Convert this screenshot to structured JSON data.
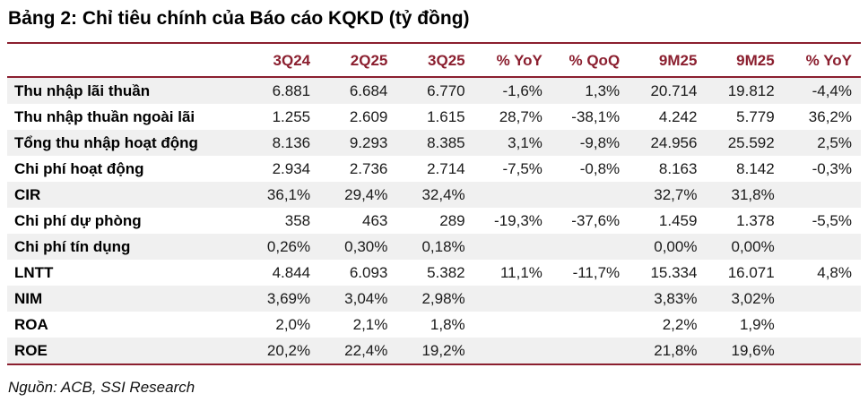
{
  "title": "Bảng 2: Chỉ tiêu chính của Báo cáo KQKD (tỷ đồng)",
  "source": "Nguồn: ACB, SSI Research",
  "colors": {
    "accent_maroon": "#8B1F2F",
    "row_stripe": "#F0F0F0",
    "text": "#1a1a1a"
  },
  "chart_data": {
    "type": "table",
    "title": "Bảng 2: Chỉ tiêu chính của Báo cáo KQKD (tỷ đồng)",
    "columns": [
      "",
      "3Q24",
      "2Q25",
      "3Q25",
      "% YoY",
      "% QoQ",
      "9M25",
      "9M25",
      "% YoY"
    ],
    "rows": [
      {
        "label": "Thu nhập lãi thuần",
        "values": [
          "6.881",
          "6.684",
          "6.770",
          "-1,6%",
          "1,3%",
          "20.714",
          "19.812",
          "-4,4%"
        ]
      },
      {
        "label": "Thu nhập thuần ngoài lãi",
        "values": [
          "1.255",
          "2.609",
          "1.615",
          "28,7%",
          "-38,1%",
          "4.242",
          "5.779",
          "36,2%"
        ]
      },
      {
        "label": "Tổng thu nhập hoạt động",
        "values": [
          "8.136",
          "9.293",
          "8.385",
          "3,1%",
          "-9,8%",
          "24.956",
          "25.592",
          "2,5%"
        ]
      },
      {
        "label": "Chi phí hoạt động",
        "values": [
          "2.934",
          "2.736",
          "2.714",
          "-7,5%",
          "-0,8%",
          "8.163",
          "8.142",
          "-0,3%"
        ]
      },
      {
        "label": "CIR",
        "values": [
          "36,1%",
          "29,4%",
          "32,4%",
          "",
          "",
          "32,7%",
          "31,8%",
          ""
        ]
      },
      {
        "label": "Chi phí dự phòng",
        "values": [
          "358",
          "463",
          "289",
          "-19,3%",
          "-37,6%",
          "1.459",
          "1.378",
          "-5,5%"
        ]
      },
      {
        "label": "Chi phí tín dụng",
        "values": [
          "0,26%",
          "0,30%",
          "0,18%",
          "",
          "",
          "0,00%",
          "0,00%",
          ""
        ]
      },
      {
        "label": "LNTT",
        "values": [
          "4.844",
          "6.093",
          "5.382",
          "11,1%",
          "-11,7%",
          "15.334",
          "16.071",
          "4,8%"
        ]
      },
      {
        "label": "NIM",
        "values": [
          "3,69%",
          "3,04%",
          "2,98%",
          "",
          "",
          "3,83%",
          "3,02%",
          ""
        ]
      },
      {
        "label": "ROA",
        "values": [
          "2,0%",
          "2,1%",
          "1,8%",
          "",
          "",
          "2,2%",
          "1,9%",
          ""
        ]
      },
      {
        "label": "ROE",
        "values": [
          "20,2%",
          "22,4%",
          "19,2%",
          "",
          "",
          "21,8%",
          "19,6%",
          ""
        ]
      }
    ],
    "source": "Nguồn: ACB, SSI Research",
    "layout": {
      "zebra_striping": true,
      "header_text_color": "#8B1F2F",
      "border_color": "#8B1F2F",
      "number_alignment": "right"
    }
  }
}
